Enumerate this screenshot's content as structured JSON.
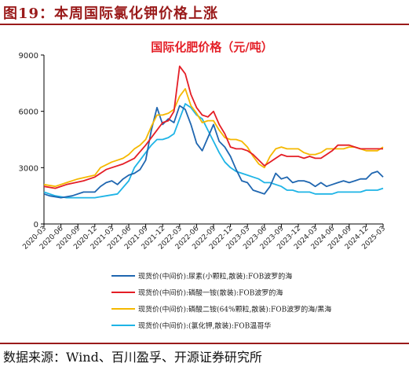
{
  "figure": {
    "caption": "图19：本周国际氯化钾价格上涨",
    "source": "数据来源：Wind、百川盈孚、开源证券研究所"
  },
  "colors": {
    "urea": "#1f66b0",
    "dap": "#e41e26",
    "dap64": "#f5b800",
    "kcl": "#1eb4e6",
    "title": "#e41e26",
    "caption": "#9a1b1b"
  },
  "chart_data": {
    "type": "line",
    "title": "国际化肥价格（元/吨）",
    "xlabel": "",
    "ylabel": "",
    "ylim": [
      0,
      9000
    ],
    "yticks": [
      "0",
      "3000",
      "6000",
      "9000"
    ],
    "xlim": [
      "2020-03",
      "2025-03"
    ],
    "xticks": [
      "2020-03",
      "2020-06",
      "2020-09",
      "2020-12",
      "2021-03",
      "2021-06",
      "2021-09",
      "2021-12",
      "2022-03",
      "2022-06",
      "2022-09",
      "2022-12",
      "2023-03",
      "2023-06",
      "2023-09",
      "2023-12",
      "2024-03",
      "2024-06",
      "2024-09",
      "2024-12",
      "2025-03"
    ],
    "grid": false,
    "legend_position": "bottom",
    "series": [
      {
        "name": "现货价(中间价):尿素(小颗粒,散装):FOB波罗的海",
        "color": "#1f66b0",
        "points": [
          [
            "2020-03",
            1600
          ],
          [
            "2020-04",
            1500
          ],
          [
            "2020-06",
            1400
          ],
          [
            "2020-08",
            1500
          ],
          [
            "2020-10",
            1700
          ],
          [
            "2020-12",
            1700
          ],
          [
            "2021-01",
            2000
          ],
          [
            "2021-02",
            2200
          ],
          [
            "2021-03",
            2300
          ],
          [
            "2021-04",
            2100
          ],
          [
            "2021-05",
            2400
          ],
          [
            "2021-06",
            2600
          ],
          [
            "2021-07",
            2700
          ],
          [
            "2021-08",
            2900
          ],
          [
            "2021-09",
            3400
          ],
          [
            "2021-10",
            5000
          ],
          [
            "2021-11",
            6200
          ],
          [
            "2021-12",
            5300
          ],
          [
            "2022-01",
            5600
          ],
          [
            "2022-02",
            5400
          ],
          [
            "2022-03",
            6300
          ],
          [
            "2022-04",
            6100
          ],
          [
            "2022-05",
            5300
          ],
          [
            "2022-06",
            4300
          ],
          [
            "2022-07",
            3900
          ],
          [
            "2022-08",
            4600
          ],
          [
            "2022-09",
            5300
          ],
          [
            "2022-10",
            4400
          ],
          [
            "2022-11",
            4100
          ],
          [
            "2022-12",
            3600
          ],
          [
            "2023-01",
            2900
          ],
          [
            "2023-02",
            2300
          ],
          [
            "2023-03",
            2200
          ],
          [
            "2023-04",
            1800
          ],
          [
            "2023-05",
            1700
          ],
          [
            "2023-06",
            1600
          ],
          [
            "2023-07",
            2000
          ],
          [
            "2023-08",
            2700
          ],
          [
            "2023-09",
            2400
          ],
          [
            "2023-10",
            2500
          ],
          [
            "2023-11",
            2200
          ],
          [
            "2023-12",
            2300
          ],
          [
            "2024-01",
            2300
          ],
          [
            "2024-02",
            2200
          ],
          [
            "2024-03",
            2000
          ],
          [
            "2024-04",
            2200
          ],
          [
            "2024-05",
            2000
          ],
          [
            "2024-06",
            2100
          ],
          [
            "2024-07",
            2200
          ],
          [
            "2024-08",
            2300
          ],
          [
            "2024-09",
            2200
          ],
          [
            "2024-10",
            2300
          ],
          [
            "2024-11",
            2400
          ],
          [
            "2024-12",
            2400
          ],
          [
            "2025-01",
            2700
          ],
          [
            "2025-02",
            2800
          ],
          [
            "2025-03",
            2500
          ]
        ]
      },
      {
        "name": "现货价(中间价):磷酸一铵(散装):FOB波罗的海",
        "color": "#e41e26",
        "points": [
          [
            "2020-03",
            2000
          ],
          [
            "2020-05",
            1900
          ],
          [
            "2020-07",
            2100
          ],
          [
            "2020-10",
            2300
          ],
          [
            "2020-12",
            2500
          ],
          [
            "2021-02",
            2900
          ],
          [
            "2021-03",
            3000
          ],
          [
            "2021-05",
            3200
          ],
          [
            "2021-07",
            3500
          ],
          [
            "2021-09",
            4200
          ],
          [
            "2021-11",
            5000
          ],
          [
            "2021-12",
            5400
          ],
          [
            "2022-01",
            5500
          ],
          [
            "2022-02",
            6000
          ],
          [
            "2022-03",
            8400
          ],
          [
            "2022-04",
            8000
          ],
          [
            "2022-05",
            6900
          ],
          [
            "2022-06",
            6200
          ],
          [
            "2022-07",
            5800
          ],
          [
            "2022-08",
            5700
          ],
          [
            "2022-09",
            6000
          ],
          [
            "2022-10",
            5300
          ],
          [
            "2022-11",
            4800
          ],
          [
            "2022-12",
            4100
          ],
          [
            "2023-01",
            4000
          ],
          [
            "2023-02",
            4000
          ],
          [
            "2023-03",
            3900
          ],
          [
            "2023-04",
            3700
          ],
          [
            "2023-05",
            3400
          ],
          [
            "2023-06",
            3100
          ],
          [
            "2023-07",
            3300
          ],
          [
            "2023-08",
            3500
          ],
          [
            "2023-09",
            3700
          ],
          [
            "2023-10",
            3600
          ],
          [
            "2023-11",
            3600
          ],
          [
            "2023-12",
            3600
          ],
          [
            "2024-01",
            3500
          ],
          [
            "2024-02",
            3600
          ],
          [
            "2024-03",
            3500
          ],
          [
            "2024-04",
            3500
          ],
          [
            "2024-05",
            3700
          ],
          [
            "2024-06",
            3900
          ],
          [
            "2024-07",
            4200
          ],
          [
            "2024-08",
            4200
          ],
          [
            "2024-09",
            4200
          ],
          [
            "2024-10",
            4100
          ],
          [
            "2024-11",
            4000
          ],
          [
            "2024-12",
            4000
          ],
          [
            "2025-01",
            4000
          ],
          [
            "2025-02",
            4000
          ],
          [
            "2025-03",
            4000
          ]
        ]
      },
      {
        "name": "现货价(中间价):磷酸二铵(64%颗粒,散装):FOB波罗的海/黑海",
        "color": "#f5b800",
        "points": [
          [
            "2020-03",
            2100
          ],
          [
            "2020-05",
            2000
          ],
          [
            "2020-07",
            2200
          ],
          [
            "2020-09",
            2400
          ],
          [
            "2020-12",
            2600
          ],
          [
            "2021-01",
            3000
          ],
          [
            "2021-03",
            3300
          ],
          [
            "2021-04",
            3400
          ],
          [
            "2021-05",
            3500
          ],
          [
            "2021-06",
            3700
          ],
          [
            "2021-07",
            4000
          ],
          [
            "2021-08",
            4200
          ],
          [
            "2021-09",
            4500
          ],
          [
            "2021-10",
            5200
          ],
          [
            "2021-11",
            5800
          ],
          [
            "2021-12",
            5800
          ],
          [
            "2022-01",
            5900
          ],
          [
            "2022-02",
            6100
          ],
          [
            "2022-03",
            6800
          ],
          [
            "2022-04",
            7200
          ],
          [
            "2022-05",
            6300
          ],
          [
            "2022-06",
            5900
          ],
          [
            "2022-07",
            5400
          ],
          [
            "2022-08",
            5500
          ],
          [
            "2022-09",
            5500
          ],
          [
            "2022-10",
            5000
          ],
          [
            "2022-11",
            4600
          ],
          [
            "2022-12",
            4500
          ],
          [
            "2023-01",
            4500
          ],
          [
            "2023-02",
            4400
          ],
          [
            "2023-03",
            4100
          ],
          [
            "2023-04",
            3600
          ],
          [
            "2023-05",
            3200
          ],
          [
            "2023-06",
            3000
          ],
          [
            "2023-07",
            3600
          ],
          [
            "2023-08",
            4000
          ],
          [
            "2023-09",
            4100
          ],
          [
            "2023-10",
            4000
          ],
          [
            "2023-11",
            4000
          ],
          [
            "2023-12",
            4000
          ],
          [
            "2024-01",
            3800
          ],
          [
            "2024-02",
            3700
          ],
          [
            "2024-03",
            3700
          ],
          [
            "2024-04",
            3800
          ],
          [
            "2024-05",
            4000
          ],
          [
            "2024-06",
            4000
          ],
          [
            "2024-07",
            4000
          ],
          [
            "2024-08",
            4000
          ],
          [
            "2024-09",
            4100
          ],
          [
            "2024-10",
            4100
          ],
          [
            "2024-11",
            4000
          ],
          [
            "2024-12",
            3900
          ],
          [
            "2025-01",
            3900
          ],
          [
            "2025-02",
            3900
          ],
          [
            "2025-03",
            4100
          ]
        ]
      },
      {
        "name": "现货价(中间价):(氯化钾,散装):FOB温哥华",
        "color": "#1eb4e6",
        "points": [
          [
            "2020-03",
            1700
          ],
          [
            "2020-05",
            1500
          ],
          [
            "2020-07",
            1400
          ],
          [
            "2020-09",
            1400
          ],
          [
            "2020-12",
            1400
          ],
          [
            "2021-02",
            1500
          ],
          [
            "2021-04",
            1600
          ],
          [
            "2021-06",
            2300
          ],
          [
            "2021-07",
            3000
          ],
          [
            "2021-08",
            3400
          ],
          [
            "2021-09",
            3800
          ],
          [
            "2021-10",
            4200
          ],
          [
            "2021-11",
            4500
          ],
          [
            "2021-12",
            4500
          ],
          [
            "2022-01",
            4600
          ],
          [
            "2022-02",
            4800
          ],
          [
            "2022-03",
            5600
          ],
          [
            "2022-04",
            6400
          ],
          [
            "2022-05",
            6200
          ],
          [
            "2022-06",
            5800
          ],
          [
            "2022-07",
            5600
          ],
          [
            "2022-08",
            5000
          ],
          [
            "2022-09",
            4400
          ],
          [
            "2022-10",
            3800
          ],
          [
            "2022-11",
            3300
          ],
          [
            "2022-12",
            3000
          ],
          [
            "2023-01",
            2800
          ],
          [
            "2023-02",
            2700
          ],
          [
            "2023-03",
            2600
          ],
          [
            "2023-04",
            2500
          ],
          [
            "2023-05",
            2400
          ],
          [
            "2023-06",
            2200
          ],
          [
            "2023-07",
            2200
          ],
          [
            "2023-08",
            2100
          ],
          [
            "2023-09",
            2000
          ],
          [
            "2023-10",
            1800
          ],
          [
            "2023-11",
            1800
          ],
          [
            "2023-12",
            1700
          ],
          [
            "2024-01",
            1700
          ],
          [
            "2024-02",
            1700
          ],
          [
            "2024-03",
            1600
          ],
          [
            "2024-04",
            1600
          ],
          [
            "2024-05",
            1600
          ],
          [
            "2024-06",
            1600
          ],
          [
            "2024-07",
            1700
          ],
          [
            "2024-08",
            1700
          ],
          [
            "2024-09",
            1700
          ],
          [
            "2024-10",
            1700
          ],
          [
            "2024-11",
            1700
          ],
          [
            "2024-12",
            1800
          ],
          [
            "2025-01",
            1800
          ],
          [
            "2025-02",
            1800
          ],
          [
            "2025-03",
            1900
          ]
        ]
      }
    ]
  }
}
